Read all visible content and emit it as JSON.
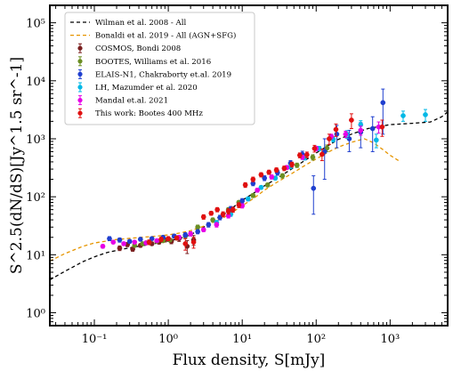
{
  "chart_data": {
    "type": "scatter",
    "xlabel": "Flux density, S[mJy]",
    "ylabel": "S^2.5(dN/dS)[Jy^1.5 sr^-1]",
    "xscale": "log",
    "yscale": "log",
    "xlim": [
      0.025,
      6000
    ],
    "ylim": [
      0.6,
      200000
    ],
    "xticks": [
      {
        "value": 0.1,
        "label": "10⁻¹"
      },
      {
        "value": 1,
        "label": "10⁰"
      },
      {
        "value": 10,
        "label": "10¹"
      },
      {
        "value": 100,
        "label": "10²"
      },
      {
        "value": 1000,
        "label": "10³"
      }
    ],
    "yticks": [
      {
        "value": 1,
        "label": "10⁰"
      },
      {
        "value": 10,
        "label": "10¹"
      },
      {
        "value": 100,
        "label": "10²"
      },
      {
        "value": 1000,
        "label": "10³"
      },
      {
        "value": 10000,
        "label": "10⁴"
      },
      {
        "value": 100000,
        "label": "10⁵"
      }
    ],
    "legend_position": "top-left",
    "grid": false,
    "lines": [
      {
        "name": "Wilman et al. 2008 - All",
        "color": "#000000",
        "dash": "4,3",
        "points": [
          [
            0.025,
            3.7
          ],
          [
            0.04,
            5.2
          ],
          [
            0.07,
            7.6
          ],
          [
            0.1,
            9.2
          ],
          [
            0.15,
            11.0
          ],
          [
            0.25,
            12.6
          ],
          [
            0.4,
            14.0
          ],
          [
            0.7,
            15.8
          ],
          [
            1.0,
            17.2
          ],
          [
            1.5,
            19.5
          ],
          [
            2.0,
            22.0
          ],
          [
            3.0,
            30.0
          ],
          [
            4.0,
            38.0
          ],
          [
            6.0,
            53.0
          ],
          [
            8.0,
            70.0
          ],
          [
            10.0,
            87.0
          ],
          [
            15.0,
            120.0
          ],
          [
            20.0,
            155.0
          ],
          [
            30.0,
            210.0
          ],
          [
            50.0,
            320.0
          ],
          [
            70.0,
            420.0
          ],
          [
            100.0,
            570.0
          ],
          [
            150.0,
            780.0
          ],
          [
            200.0,
            980.0
          ],
          [
            300.0,
            1200.0
          ],
          [
            500.0,
            1500.0
          ],
          [
            1000.0,
            1750.0
          ],
          [
            2000.0,
            1850.0
          ],
          [
            3500.0,
            1950.0
          ],
          [
            5000.0,
            2400.0
          ],
          [
            6000.0,
            2900.0
          ]
        ]
      },
      {
        "name": "Bonaldi et al. 2019 - All (AGN+SFG)",
        "color": "#e69500",
        "dash": "4,3",
        "points": [
          [
            0.025,
            7.8
          ],
          [
            0.04,
            10.5
          ],
          [
            0.07,
            14.0
          ],
          [
            0.1,
            16.0
          ],
          [
            0.2,
            18.3
          ],
          [
            0.4,
            19.8
          ],
          [
            0.7,
            21.0
          ],
          [
            1.0,
            22.0
          ],
          [
            1.5,
            24.0
          ],
          [
            2.0,
            26.0
          ],
          [
            3.0,
            31.0
          ],
          [
            4.0,
            36.0
          ],
          [
            6.0,
            46.0
          ],
          [
            8.0,
            58.0
          ],
          [
            10.0,
            70.0
          ],
          [
            15.0,
            98.0
          ],
          [
            20.0,
            130.0
          ],
          [
            30.0,
            180.0
          ],
          [
            50.0,
            265.0
          ],
          [
            70.0,
            345.0
          ],
          [
            100.0,
            450.0
          ],
          [
            150.0,
            600.0
          ],
          [
            200.0,
            720.0
          ],
          [
            300.0,
            870.0
          ],
          [
            450.0,
            1000.0
          ],
          [
            600.0,
            850.0
          ],
          [
            800.0,
            650.0
          ],
          [
            1000.0,
            520.0
          ],
          [
            1300.0,
            420.0
          ]
        ]
      }
    ],
    "series": [
      {
        "name": "COSMOS, Bondi 2008",
        "color": "#7a1f1f",
        "points": [
          [
            0.22,
            13.0
          ],
          [
            0.28,
            15.0
          ],
          [
            0.33,
            12.5
          ],
          [
            0.42,
            14.5
          ],
          [
            0.5,
            16.0
          ],
          [
            0.6,
            15.5
          ],
          [
            0.75,
            16.5
          ],
          [
            0.9,
            18.0
          ],
          [
            1.1,
            17.0
          ],
          [
            1.4,
            19.0
          ],
          [
            1.8,
            14.0
          ],
          [
            2.2,
            18.0
          ]
        ],
        "errors": [
          1.2,
          1.2,
          1.0,
          1.0,
          1.0,
          1.0,
          1.2,
          1.4,
          1.5,
          2.0,
          3.5,
          3.5
        ]
      },
      {
        "name": "BOOTES, Williams et al. 2016",
        "color": "#6b8e23",
        "points": [
          [
            0.35,
            14.5
          ],
          [
            0.45,
            15.5
          ],
          [
            0.55,
            16.5
          ],
          [
            0.7,
            17.0
          ],
          [
            0.85,
            17.5
          ],
          [
            1.05,
            18.0
          ],
          [
            1.3,
            19.5
          ],
          [
            1.7,
            21.0
          ],
          [
            2.5,
            30.0
          ],
          [
            4.0,
            40.0
          ],
          [
            6.5,
            60.0
          ],
          [
            9.0,
            80.0
          ],
          [
            14.0,
            105.0
          ],
          [
            22.0,
            160.0
          ],
          [
            35.0,
            230.0
          ],
          [
            55.0,
            350.0
          ],
          [
            90.0,
            480.0
          ],
          [
            140.0,
            690.0
          ]
        ],
        "errors": [
          1.0,
          1.0,
          1.0,
          1.0,
          1.0,
          1.2,
          1.5,
          2.0,
          2.5,
          3.0,
          5.0,
          6.0,
          8.0,
          12.0,
          20.0,
          30.0,
          50.0,
          90.0
        ]
      },
      {
        "name": "ELAIS-N1, Chakraborty et.al. 2019",
        "color": "#1f3fcf",
        "points": [
          [
            0.16,
            19.0
          ],
          [
            0.22,
            18.0
          ],
          [
            0.3,
            17.0
          ],
          [
            0.42,
            18.5
          ],
          [
            0.6,
            19.0
          ],
          [
            0.85,
            20.0
          ],
          [
            1.2,
            21.0
          ],
          [
            1.7,
            22.0
          ],
          [
            2.5,
            25.0
          ],
          [
            3.5,
            33.0
          ],
          [
            5.0,
            44.0
          ],
          [
            7.0,
            62.0
          ],
          [
            10.0,
            85.0
          ],
          [
            14.0,
            170.0
          ],
          [
            20.0,
            210.0
          ],
          [
            30.0,
            260.0
          ],
          [
            45.0,
            380.0
          ],
          [
            65.0,
            540.0
          ],
          [
            92.0,
            140.0
          ],
          [
            130.0,
            600.0
          ],
          [
            190.0,
            1200.0
          ],
          [
            280.0,
            1000.0
          ],
          [
            400.0,
            1300.0
          ],
          [
            580.0,
            1500.0
          ],
          [
            800.0,
            4200.0
          ]
        ],
        "errors": [
          1.5,
          1.5,
          1.2,
          1.2,
          1.2,
          1.2,
          1.5,
          2.0,
          2.0,
          3.0,
          4.0,
          6.0,
          8.0,
          15.0,
          20.0,
          25.0,
          40.0,
          70.0,
          90.0,
          400.0,
          500.0,
          400.0,
          600.0,
          900.0,
          3000.0
        ]
      },
      {
        "name": "LH, Mazumder et al. 2020",
        "color": "#00b8e6",
        "points": [
          [
            4.5,
            36.0
          ],
          [
            7.0,
            50.0
          ],
          [
            12.0,
            92.0
          ],
          [
            18.0,
            145.0
          ],
          [
            28.0,
            210.0
          ],
          [
            45.0,
            330.0
          ],
          [
            70.0,
            470.0
          ],
          [
            110.0,
            680.0
          ],
          [
            170.0,
            980.0
          ],
          [
            260.0,
            1200.0
          ],
          [
            400.0,
            1750.0
          ],
          [
            650.0,
            950.0
          ],
          [
            1500.0,
            2500.0
          ],
          [
            3000.0,
            2600.0
          ]
        ],
        "errors": [
          3.0,
          4.0,
          7.0,
          10.0,
          15.0,
          25.0,
          40.0,
          60.0,
          100.0,
          180.0,
          300.0,
          250.0,
          500.0,
          600.0
        ]
      },
      {
        "name": "Mandal et.al. 2021",
        "color": "#e600e6",
        "points": [
          [
            0.13,
            14.0
          ],
          [
            0.18,
            16.5
          ],
          [
            0.25,
            15.5
          ],
          [
            0.35,
            16.5
          ],
          [
            0.5,
            16.0
          ],
          [
            0.7,
            17.5
          ],
          [
            1.0,
            19.0
          ],
          [
            1.4,
            20.0
          ],
          [
            2.0,
            23.0
          ],
          [
            3.0,
            27.0
          ],
          [
            4.5,
            33.0
          ],
          [
            6.5,
            47.0
          ],
          [
            10.0,
            70.0
          ],
          [
            16.0,
            130.0
          ],
          [
            25.0,
            220.0
          ],
          [
            40.0,
            320.0
          ],
          [
            65.0,
            480.0
          ],
          [
            100.0,
            680.0
          ],
          [
            160.0,
            1100.0
          ],
          [
            250.0,
            1200.0
          ],
          [
            400.0,
            1400.0
          ],
          [
            700.0,
            1600.0
          ]
        ],
        "errors": [
          1.0,
          1.0,
          1.0,
          1.0,
          1.0,
          1.0,
          1.2,
          1.5,
          2.0,
          2.0,
          3.0,
          4.0,
          6.0,
          10.0,
          18.0,
          25.0,
          40.0,
          60.0,
          100.0,
          150.0,
          250.0,
          350.0
        ]
      },
      {
        "name": "This work: Bootes 400 MHz",
        "color": "#e01010",
        "points": [
          [
            0.55,
            16.5
          ],
          [
            0.8,
            18.5
          ],
          [
            1.0,
            19.0
          ],
          [
            1.3,
            19.5
          ],
          [
            1.7,
            15.5
          ],
          [
            2.2,
            16.5
          ],
          [
            3.0,
            45.0
          ],
          [
            3.8,
            52.0
          ],
          [
            4.6,
            60.0
          ],
          [
            5.5,
            50.0
          ],
          [
            6.5,
            56.0
          ],
          [
            7.5,
            60.0
          ],
          [
            9.0,
            72.0
          ],
          [
            11.0,
            160.0
          ],
          [
            14.0,
            200.0
          ],
          [
            18.0,
            240.0
          ],
          [
            23.0,
            265.0
          ],
          [
            29.0,
            290.0
          ],
          [
            37.0,
            310.0
          ],
          [
            47.0,
            360.0
          ],
          [
            60.0,
            520.0
          ],
          [
            75.0,
            530.0
          ],
          [
            95.0,
            680.0
          ],
          [
            120.0,
            540.0
          ],
          [
            150.0,
            1000.0
          ],
          [
            185.0,
            1450.0
          ],
          [
            300.0,
            2100.0
          ],
          [
            780.0,
            1600.0
          ]
        ],
        "errors": [
          1.5,
          1.5,
          1.5,
          1.5,
          3.5,
          3.5,
          4.0,
          4.0,
          5.0,
          5.0,
          6.0,
          6.0,
          7.0,
          15.0,
          18.0,
          20.0,
          22.0,
          25.0,
          28.0,
          35.0,
          50.0,
          60.0,
          90.0,
          120.0,
          200.0,
          350.0,
          600.0,
          500.0
        ]
      }
    ]
  }
}
